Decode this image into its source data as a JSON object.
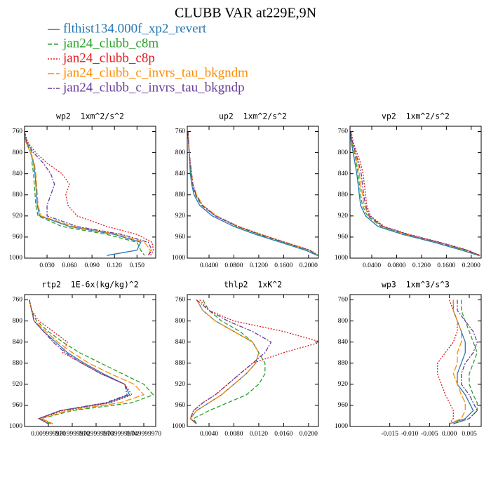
{
  "title": "CLUBB VAR at229E,9N",
  "legend": [
    {
      "name": "flthist134.000f_xp2_revert",
      "color": "#2878b4",
      "dash": "solid"
    },
    {
      "name": "jan24_clubb_c8m",
      "color": "#2ca02c",
      "dash": "dashed"
    },
    {
      "name": "jan24_clubb_c8p",
      "color": "#e31a1c",
      "dash": "dotted"
    },
    {
      "name": "jan24_clubb_c_invrs_tau_bkgndm",
      "color": "#ff8c00",
      "dash": "longdash"
    },
    {
      "name": "jan24_clubb_c_invrs_tau_bkgndp",
      "color": "#6a3d9a",
      "dash": "dashdot"
    }
  ],
  "chart_data": [
    {
      "type": "line",
      "title": "wp2  1xm^2/s^2",
      "y": [
        760,
        780,
        800,
        820,
        840,
        860,
        880,
        900,
        920,
        940,
        955,
        970,
        985,
        995
      ],
      "xlim": [
        0,
        0.175
      ],
      "xticks": [
        {
          "value": 0.03,
          "label": "0.030"
        },
        {
          "value": 0.06,
          "label": "0.060"
        },
        {
          "value": 0.09,
          "label": "0.090"
        },
        {
          "value": 0.12,
          "label": "0.120"
        },
        {
          "value": 0.15,
          "label": "0.150"
        }
      ],
      "ylim": [
        750,
        1000
      ],
      "y_inverted": true,
      "yticks": [
        760,
        800,
        840,
        880,
        920,
        960,
        1000
      ],
      "series": [
        {
          "values": [
            0,
            0.002,
            0.008,
            0.012,
            0.014,
            0.015,
            0.016,
            0.017,
            0.02,
            0.06,
            0.12,
            0.155,
            0.15,
            0.11
          ]
        },
        {
          "values": [
            0,
            0.003,
            0.01,
            0.01,
            0.012,
            0.013,
            0.014,
            0.015,
            0.018,
            0.05,
            0.11,
            0.15,
            0.155,
            0.16
          ]
        },
        {
          "values": [
            0,
            0.004,
            0.015,
            0.03,
            0.05,
            0.06,
            0.055,
            0.058,
            0.07,
            0.11,
            0.15,
            0.17,
            0.172,
            0.168
          ]
        },
        {
          "values": [
            0,
            0.002,
            0.008,
            0.013,
            0.015,
            0.016,
            0.017,
            0.018,
            0.022,
            0.065,
            0.125,
            0.16,
            0.168,
            0.165
          ]
        },
        {
          "values": [
            0,
            0.003,
            0.012,
            0.025,
            0.035,
            0.04,
            0.035,
            0.03,
            0.03,
            0.07,
            0.13,
            0.165,
            0.17,
            0.165
          ]
        }
      ]
    },
    {
      "type": "line",
      "title": "up2  1xm^2/s^2",
      "y": [
        760,
        780,
        800,
        820,
        840,
        860,
        880,
        900,
        920,
        940,
        955,
        970,
        985,
        995
      ],
      "xlim": [
        0.005,
        0.216
      ],
      "xticks": [
        {
          "value": 0.04,
          "label": "0.0400"
        },
        {
          "value": 0.08,
          "label": "0.0800"
        },
        {
          "value": 0.12,
          "label": "0.1200"
        },
        {
          "value": 0.16,
          "label": "0.1600"
        },
        {
          "value": 0.2,
          "label": "0.2000"
        }
      ],
      "ylim": [
        750,
        1000
      ],
      "y_inverted": true,
      "yticks": [
        760,
        800,
        840,
        880,
        920,
        960,
        1000
      ],
      "series": [
        {
          "values": [
            0.006,
            0.007,
            0.008,
            0.009,
            0.01,
            0.012,
            0.016,
            0.025,
            0.045,
            0.08,
            0.115,
            0.155,
            0.195,
            0.214
          ]
        },
        {
          "values": [
            0.006,
            0.007,
            0.008,
            0.009,
            0.011,
            0.013,
            0.018,
            0.028,
            0.05,
            0.085,
            0.12,
            0.16,
            0.2,
            0.216
          ]
        },
        {
          "values": [
            0.006,
            0.007,
            0.008,
            0.01,
            0.012,
            0.014,
            0.019,
            0.03,
            0.052,
            0.088,
            0.124,
            0.163,
            0.203,
            0.216
          ]
        },
        {
          "values": [
            0.006,
            0.007,
            0.008,
            0.01,
            0.012,
            0.014,
            0.02,
            0.03,
            0.052,
            0.087,
            0.123,
            0.162,
            0.202,
            0.216
          ]
        },
        {
          "values": [
            0.006,
            0.007,
            0.008,
            0.01,
            0.012,
            0.014,
            0.019,
            0.029,
            0.05,
            0.086,
            0.122,
            0.161,
            0.201,
            0.215
          ]
        }
      ]
    },
    {
      "type": "line",
      "title": "vp2  1xm^2/s^2",
      "y": [
        760,
        780,
        800,
        820,
        840,
        860,
        880,
        900,
        920,
        940,
        955,
        970,
        985,
        995
      ],
      "xlim": [
        0.005,
        0.216
      ],
      "xticks": [
        {
          "value": 0.04,
          "label": "0.0400"
        },
        {
          "value": 0.08,
          "label": "0.0800"
        },
        {
          "value": 0.12,
          "label": "0.1200"
        },
        {
          "value": 0.16,
          "label": "0.1600"
        },
        {
          "value": 0.2,
          "label": "0.2000"
        }
      ],
      "ylim": [
        750,
        1000
      ],
      "y_inverted": true,
      "yticks": [
        760,
        800,
        840,
        880,
        920,
        960,
        1000
      ],
      "series": [
        {
          "values": [
            0.005,
            0.007,
            0.01,
            0.013,
            0.016,
            0.018,
            0.02,
            0.022,
            0.03,
            0.05,
            0.09,
            0.14,
            0.185,
            0.212
          ]
        },
        {
          "values": [
            0.006,
            0.008,
            0.012,
            0.015,
            0.018,
            0.02,
            0.022,
            0.025,
            0.033,
            0.055,
            0.095,
            0.145,
            0.19,
            0.214
          ]
        },
        {
          "values": [
            0.007,
            0.01,
            0.016,
            0.022,
            0.026,
            0.028,
            0.03,
            0.032,
            0.038,
            0.06,
            0.1,
            0.15,
            0.195,
            0.215
          ]
        },
        {
          "values": [
            0.006,
            0.009,
            0.013,
            0.017,
            0.02,
            0.022,
            0.025,
            0.028,
            0.035,
            0.057,
            0.097,
            0.147,
            0.192,
            0.214
          ]
        },
        {
          "values": [
            0.006,
            0.009,
            0.014,
            0.019,
            0.023,
            0.025,
            0.027,
            0.03,
            0.036,
            0.058,
            0.098,
            0.148,
            0.193,
            0.214
          ]
        }
      ]
    },
    {
      "type": "line",
      "title": "rtp2  1E-6x(kg/kg)^2",
      "y": [
        760,
        780,
        800,
        820,
        840,
        860,
        880,
        900,
        920,
        940,
        955,
        970,
        985,
        995
      ],
      "xlim": [
        0,
        0.055
      ],
      "xticks": [
        {
          "value": 0.01,
          "label": "0.009999970"
        },
        {
          "value": 0.02,
          "label": "0.019999970"
        },
        {
          "value": 0.03,
          "label": "0.029999970"
        },
        {
          "value": 0.04,
          "label": "0.039999970"
        },
        {
          "value": 0.05,
          "label": "0.049999970"
        }
      ],
      "ylim": [
        750,
        1000
      ],
      "y_inverted": true,
      "yticks": [
        760,
        800,
        840,
        880,
        920,
        960,
        1000
      ],
      "series": [
        {
          "values": [
            0.002,
            0.003,
            0.004,
            0.008,
            0.013,
            0.018,
            0.025,
            0.033,
            0.042,
            0.044,
            0.035,
            0.015,
            0.006,
            0.01
          ]
        },
        {
          "values": [
            0.002,
            0.003,
            0.005,
            0.01,
            0.016,
            0.023,
            0.032,
            0.041,
            0.05,
            0.054,
            0.045,
            0.02,
            0.007,
            0.011
          ]
        },
        {
          "values": [
            0.002,
            0.003,
            0.006,
            0.012,
            0.018,
            0.016,
            0.024,
            0.032,
            0.042,
            0.045,
            0.036,
            0.016,
            0.006,
            0.012
          ]
        },
        {
          "values": [
            0.002,
            0.003,
            0.004,
            0.009,
            0.014,
            0.02,
            0.027,
            0.036,
            0.046,
            0.05,
            0.04,
            0.018,
            0.007,
            0.012
          ]
        },
        {
          "values": [
            0.002,
            0.003,
            0.004,
            0.008,
            0.012,
            0.017,
            0.024,
            0.032,
            0.042,
            0.043,
            0.034,
            0.015,
            0.006,
            0.01
          ]
        }
      ]
    },
    {
      "type": "line",
      "title": "thlp2  1xK^2",
      "y": [
        760,
        780,
        800,
        820,
        840,
        860,
        880,
        900,
        920,
        940,
        955,
        970,
        985,
        995
      ],
      "xlim": [
        0.0005,
        0.0216
      ],
      "xticks": [
        {
          "value": 0.004,
          "label": "0.0040"
        },
        {
          "value": 0.008,
          "label": "0.0080"
        },
        {
          "value": 0.012,
          "label": "0.0120"
        },
        {
          "value": 0.016,
          "label": "0.0160"
        },
        {
          "value": 0.02,
          "label": "0.0200"
        }
      ],
      "ylim": [
        750,
        1000
      ],
      "y_inverted": true,
      "yticks": [
        760,
        800,
        840,
        880,
        920,
        960,
        1000
      ],
      "series": [
        {
          "values": [
            0.002,
            0.003,
            0.005,
            0.008,
            0.011,
            0.012,
            0.0115,
            0.01,
            0.008,
            0.006,
            0.004,
            0.002,
            0.001,
            0.002
          ]
        },
        {
          "values": [
            0.003,
            0.004,
            0.006,
            0.009,
            0.011,
            0.012,
            0.013,
            0.013,
            0.012,
            0.01,
            0.007,
            0.004,
            0.0015,
            0.002
          ]
        },
        {
          "values": [
            0.0025,
            0.004,
            0.008,
            0.016,
            0.022,
            0.016,
            0.011,
            0.009,
            0.007,
            0.005,
            0.003,
            0.0015,
            0.001,
            0.002
          ]
        },
        {
          "values": [
            0.002,
            0.003,
            0.005,
            0.008,
            0.011,
            0.012,
            0.0115,
            0.01,
            0.008,
            0.006,
            0.004,
            0.002,
            0.001,
            0.002
          ]
        },
        {
          "values": [
            0.002,
            0.004,
            0.007,
            0.011,
            0.014,
            0.013,
            0.011,
            0.009,
            0.007,
            0.005,
            0.003,
            0.0015,
            0.001,
            0.002
          ]
        }
      ]
    },
    {
      "type": "line",
      "title": "wp3  1xm^3/s^3",
      "y": [
        760,
        780,
        800,
        820,
        840,
        860,
        880,
        900,
        920,
        940,
        955,
        970,
        985,
        995
      ],
      "xlim": [
        -0.025,
        0.008
      ],
      "xticks": [
        {
          "value": -0.015,
          "label": "-0.015"
        },
        {
          "value": -0.01,
          "label": "-0.010"
        },
        {
          "value": -0.005,
          "label": "-0.005"
        },
        {
          "value": 0,
          "label": "0.000"
        },
        {
          "value": 0.005,
          "label": "0.005"
        }
      ],
      "ylim": [
        750,
        1000
      ],
      "y_inverted": true,
      "yticks": [
        760,
        800,
        840,
        880,
        920,
        960,
        1000
      ],
      "series": [
        {
          "values": [
            0.001,
            0.001,
            0.002,
            0.003,
            0.004,
            0.004,
            0.003,
            0.002,
            0.002,
            0.004,
            0.005,
            0.006,
            0.004,
            0
          ]
        },
        {
          "values": [
            0.003,
            0.003,
            0.004,
            0.005,
            0.006,
            0.007,
            0.006,
            0.005,
            0.005,
            0.006,
            0.007,
            0.007,
            0.005,
            0.001
          ]
        },
        {
          "values": [
            0,
            0.001,
            0.002,
            0.002,
            0.001,
            -0.001,
            -0.003,
            -0.003,
            -0.002,
            -0.001,
            0,
            0.001,
            0.001,
            0
          ]
        },
        {
          "values": [
            0.001,
            0.001,
            0.002,
            0.003,
            0.003,
            0.002,
            0.002,
            0.001,
            0.002,
            0.003,
            0.004,
            0.004,
            0.003,
            0
          ]
        },
        {
          "values": [
            0.002,
            0.002,
            0.004,
            0.006,
            0.007,
            0.006,
            0.004,
            0.003,
            0.003,
            0.005,
            0.006,
            0.007,
            0.005,
            0.001
          ]
        }
      ]
    }
  ]
}
